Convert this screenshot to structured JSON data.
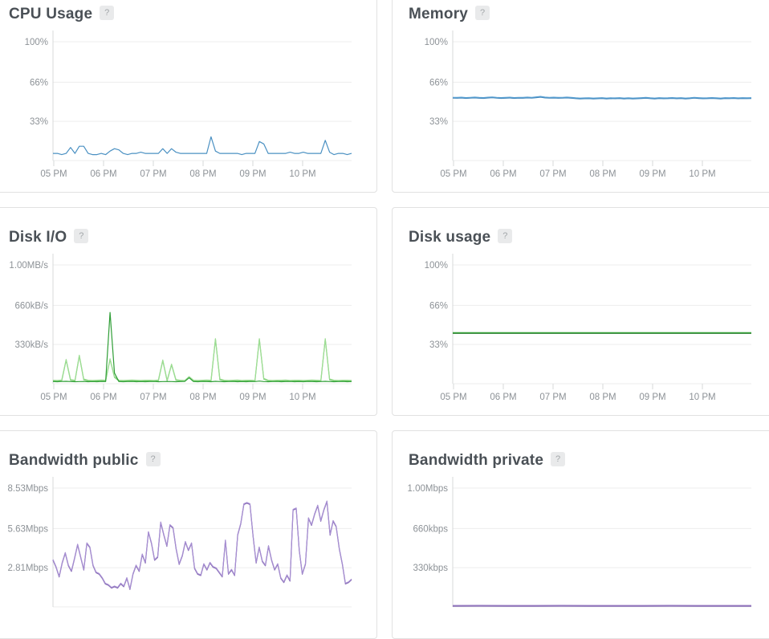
{
  "theme": {
    "grid_color": "#ededed",
    "axis_color": "#d7d9da",
    "tick_color": "#d7d9da",
    "label_color": "#8d9297",
    "title_color": "#4a5056",
    "panel_border": "#e1e1e1"
  },
  "panels": [
    {
      "title": "CPU Usage",
      "help_label": "?",
      "chart_data": {
        "type": "line",
        "ymax": 100,
        "ytick_labels": [
          "100%",
          "66%",
          "33%"
        ],
        "ytick_values": [
          100,
          66,
          33
        ],
        "xtick_labels": [
          "05 PM",
          "06 PM",
          "07 PM",
          "08 PM",
          "09 PM",
          "10 PM"
        ],
        "series": [
          {
            "name": "cpu-percent",
            "color": "#4a90c2",
            "values": [
              6,
              6,
              5,
              6,
              11,
              6,
              12,
              12,
              6,
              5,
              5,
              6,
              5,
              8,
              10,
              9,
              6,
              5,
              6,
              6,
              7,
              6,
              6,
              6,
              6,
              10,
              6,
              10,
              7,
              6,
              6,
              6,
              6,
              6,
              6,
              6,
              20,
              8,
              6,
              6,
              6,
              6,
              6,
              5,
              6,
              6,
              6,
              16,
              14,
              6,
              6,
              6,
              6,
              6,
              7,
              6,
              6,
              7,
              6,
              6,
              6,
              6,
              17,
              7,
              5,
              6,
              6,
              5,
              6
            ]
          }
        ]
      }
    },
    {
      "title": "Memory",
      "help_label": "?",
      "chart_data": {
        "type": "line",
        "ymax": 100,
        "ytick_labels": [
          "100%",
          "66%",
          "33%"
        ],
        "ytick_values": [
          100,
          66,
          33
        ],
        "xtick_labels": [
          "05 PM",
          "06 PM",
          "07 PM",
          "08 PM",
          "09 PM",
          "10 PM"
        ],
        "series": [
          {
            "name": "memory-percent",
            "color": "#5aa0d2",
            "edge_color": "#3e84ba",
            "values": [
              53.2,
              53.1,
              53.3,
              53.0,
              53.2,
              53.4,
              53.1,
              53.0,
              53.3,
              53.5,
              53.2,
              53.0,
              53.1,
              53.3,
              53.0,
              53.2,
              53.1,
              53.4,
              53.2,
              53.6,
              54.0,
              53.4,
              53.2,
              53.3,
              53.1,
              53.2,
              53.4,
              53.1,
              52.8,
              52.6,
              52.7,
              52.8,
              52.6,
              52.7,
              52.9,
              52.6,
              52.8,
              52.7,
              52.9,
              52.6,
              52.8,
              52.6,
              52.7,
              52.9,
              53.1,
              52.8,
              52.6,
              52.9,
              52.7,
              52.8,
              53.0,
              52.7,
              52.9,
              52.6,
              52.8,
              53.2,
              52.9,
              52.7,
              52.8,
              53.0,
              52.8,
              52.6,
              52.9,
              52.8,
              53.0,
              52.7,
              52.9,
              52.8,
              52.9
            ]
          }
        ]
      }
    },
    {
      "title": "Disk I/O",
      "help_label": "?",
      "chart_data": {
        "type": "line",
        "ymax": 1000,
        "ytick_labels": [
          "1.00MB/s",
          "660kB/s",
          "330kB/s"
        ],
        "ytick_values": [
          1000,
          660,
          330
        ],
        "xtick_labels": [
          "05 PM",
          "06 PM",
          "07 PM",
          "08 PM",
          "09 PM",
          "10 PM"
        ],
        "series": [
          {
            "name": "disk-read-kbps",
            "color": "#9edd94",
            "edge_color": "#74ca6c",
            "values": [
              30,
              28,
              32,
              205,
              35,
              30,
              240,
              40,
              30,
              28,
              30,
              32,
              30,
              210,
              60,
              30,
              28,
              30,
              32,
              30,
              28,
              30,
              30,
              28,
              32,
              200,
              30,
              165,
              35,
              30,
              28,
              60,
              30,
              28,
              30,
              32,
              30,
              380,
              40,
              30,
              28,
              30,
              32,
              28,
              30,
              30,
              28,
              380,
              45,
              30,
              28,
              30,
              30,
              32,
              28,
              30,
              30,
              28,
              30,
              32,
              30,
              28,
              380,
              40,
              30,
              28,
              30,
              30,
              28
            ]
          },
          {
            "name": "disk-write-kbps",
            "color": "#2f9e36",
            "values": [
              18,
              17,
              19,
              20,
              18,
              17,
              18,
              19,
              17,
              18,
              17,
              19,
              18,
              600,
              90,
              18,
              17,
              18,
              19,
              17,
              18,
              17,
              18,
              19,
              17,
              18,
              19,
              18,
              17,
              18,
              19,
              50,
              18,
              17,
              19,
              18,
              17,
              20,
              18,
              17,
              18,
              19,
              17,
              18,
              17,
              19,
              18,
              22,
              18,
              17,
              18,
              19,
              17,
              18,
              19,
              17,
              18,
              17,
              19,
              18,
              17,
              18,
              20,
              18,
              17,
              18,
              19,
              17,
              18
            ]
          }
        ]
      }
    },
    {
      "title": "Disk usage",
      "help_label": "?",
      "chart_data": {
        "type": "line",
        "ymax": 100,
        "ytick_labels": [
          "100%",
          "66%",
          "33%"
        ],
        "ytick_values": [
          100,
          66,
          33
        ],
        "xtick_labels": [
          "05 PM",
          "06 PM",
          "07 PM",
          "08 PM",
          "09 PM",
          "10 PM"
        ],
        "series": [
          {
            "name": "disk-usage-percent",
            "color": "#3aa33d",
            "edge_color": "#2c7f30",
            "values": [
              43,
              43,
              43,
              43,
              43,
              43,
              43,
              43
            ]
          }
        ]
      }
    },
    {
      "title": "Bandwidth public",
      "help_label": "?",
      "chart_data": {
        "type": "line",
        "ymax": 8.53,
        "ytick_labels": [
          "8.53Mbps",
          "5.63Mbps",
          "2.81Mbps"
        ],
        "ytick_values": [
          8.53,
          5.63,
          2.81
        ],
        "xtick_labels": [],
        "series": [
          {
            "name": "bandwidth-public-mbps",
            "color": "#a78fd2",
            "edge_color": "#7e62ae",
            "values": [
              3.4,
              2.9,
              2.2,
              3.2,
              3.9,
              3.0,
              2.6,
              3.5,
              4.5,
              3.6,
              2.7,
              4.6,
              4.3,
              3.0,
              2.5,
              2.4,
              2.1,
              1.7,
              1.6,
              1.4,
              1.5,
              1.4,
              1.7,
              1.5,
              2.1,
              1.3,
              2.4,
              3.0,
              2.6,
              3.8,
              3.2,
              5.4,
              4.6,
              3.4,
              3.6,
              6.1,
              5.2,
              4.4,
              5.9,
              5.7,
              4.2,
              3.1,
              3.7,
              4.7,
              4.1,
              4.6,
              2.8,
              2.4,
              2.3,
              3.1,
              2.7,
              3.2,
              2.9,
              2.8,
              2.5,
              2.2,
              4.8,
              2.4,
              2.7,
              2.3,
              5.2,
              6.0,
              7.4,
              7.5,
              7.4,
              5.1,
              3.2,
              4.3,
              3.3,
              3.0,
              4.4,
              3.4,
              2.7,
              3.1,
              2.1,
              1.8,
              2.3,
              1.9,
              7.0,
              7.1,
              4.1,
              2.4,
              3.1,
              6.4,
              5.9,
              6.7,
              7.3,
              6.2,
              7.0,
              7.6,
              5.2,
              6.2,
              5.8,
              4.2,
              3.1,
              1.7,
              1.8,
              2.0
            ]
          }
        ]
      }
    },
    {
      "title": "Bandwidth private",
      "help_label": "?",
      "chart_data": {
        "type": "line",
        "ymax": 1000,
        "ytick_labels": [
          "1.00Mbps",
          "660kbps",
          "330kbps"
        ],
        "ytick_values": [
          1000,
          660,
          330
        ],
        "xtick_labels": [],
        "series": [
          {
            "name": "bandwidth-private-kbps",
            "color": "#9a7fc4",
            "edge_color": "#7e62ae",
            "values": [
              12,
              13,
              12,
              12,
              13,
              12,
              12,
              12,
              13,
              12,
              12,
              12
            ]
          }
        ]
      }
    }
  ]
}
